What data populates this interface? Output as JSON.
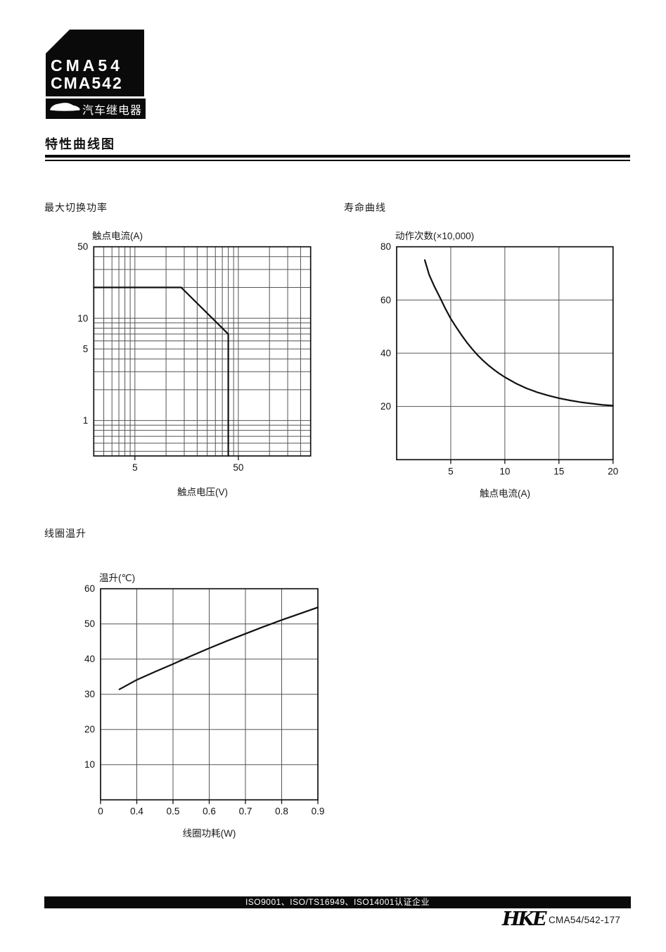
{
  "header": {
    "model_line1": "CMA54",
    "model_line2": "CMA542",
    "category_label": "汽车继电器",
    "page_title": "特性曲线图"
  },
  "footer": {
    "iso_text": "ISO9001、ISO/TS16949、ISO14001认证企业",
    "brand": "HKE",
    "doc_number": "CMA54/542-177"
  },
  "chart_data": [
    {
      "id": "max-switching-power",
      "section_title": "最大切换功率",
      "type": "line",
      "xscale": "log",
      "yscale": "log",
      "xlabel": "触点电压(V)",
      "ylabel": "触点电流(A)",
      "xlim": [
        2,
        250
      ],
      "ylim": [
        0.45,
        50
      ],
      "xgrid": [
        2.5,
        3,
        3.5,
        4,
        4.5,
        5,
        10,
        15,
        20,
        25,
        30,
        35,
        40,
        45,
        50,
        100,
        150,
        200
      ],
      "ygrid": [
        0.5,
        0.6,
        0.7,
        0.8,
        0.9,
        1,
        2,
        3,
        4,
        5,
        6,
        7,
        8,
        9,
        10,
        20,
        30,
        40
      ],
      "xticks": [
        {
          "v": 5,
          "label": "5"
        },
        {
          "v": 50,
          "label": "50"
        }
      ],
      "yticks": [
        {
          "v": 50,
          "label": "50"
        },
        {
          "v": 10,
          "label": "10"
        },
        {
          "v": 5,
          "label": "5"
        },
        {
          "v": 1,
          "label": "1"
        }
      ],
      "grid": true,
      "legend": "none",
      "series": [
        {
          "name": "max-switching-capability-limit",
          "points": [
            [
              2,
              20
            ],
            [
              14,
              20
            ],
            [
              40,
              7
            ],
            [
              40,
              0.45
            ]
          ]
        }
      ]
    },
    {
      "id": "life-curve",
      "section_title": "寿命曲线",
      "type": "line",
      "xscale": "linear",
      "yscale": "linear",
      "xlabel": "触点电流(A)",
      "ylabel": "动作次数(×10,000)",
      "xlim": [
        0,
        20
      ],
      "ylim": [
        0,
        80
      ],
      "xgrid": [
        5,
        10,
        15
      ],
      "ygrid": [
        20,
        40,
        60
      ],
      "xticks": [
        {
          "v": 5,
          "label": "5"
        },
        {
          "v": 10,
          "label": "10"
        },
        {
          "v": 15,
          "label": "15"
        },
        {
          "v": 20,
          "label": "20"
        }
      ],
      "yticks": [
        {
          "v": 80,
          "label": "80"
        },
        {
          "v": 60,
          "label": "60"
        },
        {
          "v": 40,
          "label": "40"
        },
        {
          "v": 20,
          "label": "20"
        }
      ],
      "grid": true,
      "legend": "none",
      "series": [
        {
          "name": "electrical-life",
          "points": [
            [
              2.6,
              75
            ],
            [
              3,
              69.5
            ],
            [
              3.5,
              65
            ],
            [
              4,
              61
            ],
            [
              4.5,
              56.8
            ],
            [
              5,
              53
            ],
            [
              5.5,
              49.8
            ],
            [
              6,
              46.8
            ],
            [
              6.5,
              44
            ],
            [
              7,
              41.5
            ],
            [
              7.5,
              39.2
            ],
            [
              8,
              37.2
            ],
            [
              8.5,
              35.4
            ],
            [
              9,
              33.8
            ],
            [
              9.5,
              32.3
            ],
            [
              10,
              31
            ],
            [
              11,
              28.7
            ],
            [
              12,
              26.8
            ],
            [
              13,
              25.3
            ],
            [
              14,
              24.1
            ],
            [
              15,
              23.1
            ],
            [
              16,
              22.3
            ],
            [
              17,
              21.6
            ],
            [
              18,
              21.1
            ],
            [
              19,
              20.6
            ],
            [
              20,
              20.3
            ]
          ]
        }
      ]
    },
    {
      "id": "coil-temperature-rise",
      "section_title": "线圈温升",
      "type": "line",
      "xscale": "categorical",
      "yscale": "linear",
      "xlabel": "线圈功耗(W)",
      "ylabel": "温升(℃)",
      "xcategories": [
        "0",
        "0.4",
        "0.5",
        "0.6",
        "0.7",
        "0.8",
        "0.9"
      ],
      "xlim": [
        0,
        6
      ],
      "ylim": [
        0,
        60
      ],
      "xgrid": [
        1,
        2,
        3,
        4,
        5
      ],
      "ygrid": [
        10,
        20,
        30,
        40,
        50
      ],
      "xticks": [],
      "yticks": [
        {
          "v": 60,
          "label": "60"
        },
        {
          "v": 50,
          "label": "50"
        },
        {
          "v": 40,
          "label": "40"
        },
        {
          "v": 30,
          "label": "30"
        },
        {
          "v": 20,
          "label": "20"
        },
        {
          "v": 10,
          "label": "10"
        }
      ],
      "grid": true,
      "legend": "none",
      "series": [
        {
          "name": "coil-temperature-rise-curve",
          "points": [
            [
              0.52,
              31.4
            ],
            [
              1,
              34.1
            ],
            [
              1.5,
              36.4
            ],
            [
              2,
              38.6
            ],
            [
              2.5,
              40.9
            ],
            [
              3,
              43.1
            ],
            [
              3.5,
              45.2
            ],
            [
              4,
              47.2
            ],
            [
              4.5,
              49.2
            ],
            [
              5,
              51.1
            ],
            [
              5.5,
              52.9
            ],
            [
              6,
              54.7
            ]
          ]
        }
      ]
    }
  ]
}
